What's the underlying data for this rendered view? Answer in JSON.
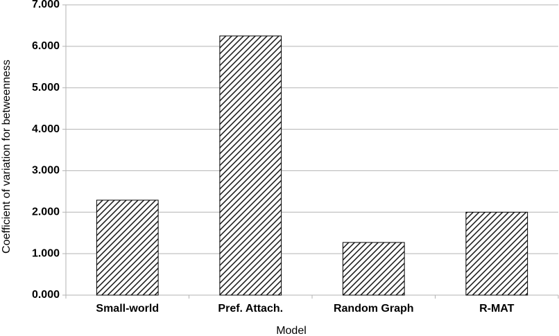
{
  "chart_data": {
    "type": "bar",
    "x_label": "Model",
    "y_label": "Coefficient of variation for betweenness",
    "categories": [
      "Small-world",
      "Pref. Attach.",
      "Random Graph",
      "R-MAT"
    ],
    "values": [
      2.29,
      6.25,
      1.27,
      2.0
    ],
    "color": "#000000",
    "ylim": [
      0,
      7
    ],
    "yticks": [
      {
        "value": 0,
        "label": "0.000"
      },
      {
        "value": 1,
        "label": "1.000"
      },
      {
        "value": 2,
        "label": "2.000"
      },
      {
        "value": 3,
        "label": "3.000"
      },
      {
        "value": 4,
        "label": "4.000"
      },
      {
        "value": 5,
        "label": "5.000"
      },
      {
        "value": 6,
        "label": "6.000"
      },
      {
        "value": 7,
        "label": "7.000"
      }
    ],
    "grid": true
  }
}
